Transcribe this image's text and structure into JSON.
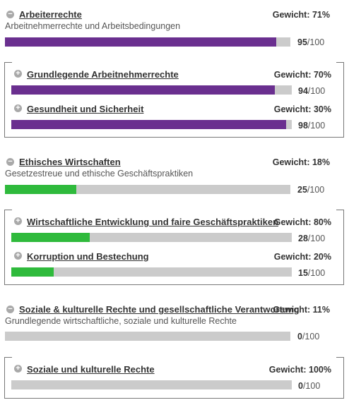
{
  "colors": {
    "purple": "#6a2f8f",
    "green": "#2fba3c",
    "track": "#cbcbcb"
  },
  "score_suffix": "/100",
  "sections": [
    {
      "title": "Arbeiterrechte",
      "weight": "Gewicht: 71%",
      "subtitle": "Arbeitnehmerrechte und Arbeitsbedingungen",
      "icon": "minus-circle-icon",
      "score": "95",
      "fill_fraction": 0.95,
      "children": [
        {
          "title": "Grundlegende Arbeitnehmerrechte",
          "weight": "Gewicht: 70%",
          "icon": "plus-circle-icon",
          "score": "94",
          "fill_fraction": 0.94
        },
        {
          "title": "Gesundheit und Sicherheit",
          "weight": "Gewicht: 30%",
          "icon": "plus-circle-icon",
          "score": "98",
          "fill_fraction": 0.98
        }
      ]
    },
    {
      "title": "Ethisches Wirtschaften",
      "weight": "Gewicht: 18%",
      "subtitle": "Gesetzestreue und ethische Geschäftspraktiken",
      "icon": "minus-circle-icon",
      "score": "25",
      "fill_fraction": 0.25,
      "children": [
        {
          "title": "Wirtschaftliche Entwicklung und faire Geschäftspraktiken",
          "weight": "Gewicht: 80%",
          "icon": "plus-circle-icon",
          "score": "28",
          "fill_fraction": 0.28
        },
        {
          "title": "Korruption und Bestechung",
          "weight": "Gewicht: 20%",
          "icon": "plus-circle-icon",
          "score": "15",
          "fill_fraction": 0.15
        }
      ]
    },
    {
      "title": "Soziale & kulturelle Rechte und gesellschaftliche Verantwortung",
      "weight": "Gewicht: 11%",
      "subtitle": "Grundlegende wirtschaftliche, soziale und kulturelle Rechte",
      "icon": "minus-circle-icon",
      "score": "0",
      "fill_fraction": 0,
      "children": [
        {
          "title": "Soziale und kulturelle Rechte",
          "weight": "Gewicht: 100%",
          "icon": "plus-circle-icon",
          "score": "0",
          "fill_fraction": 0
        }
      ]
    }
  ]
}
